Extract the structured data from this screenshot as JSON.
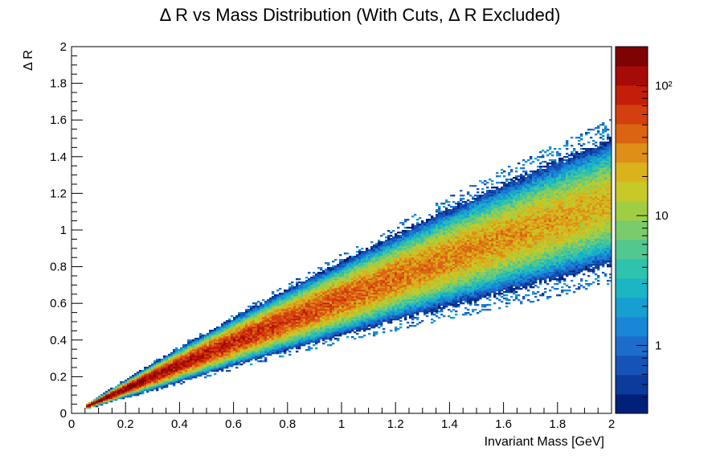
{
  "chart_data": {
    "type": "heatmap",
    "title": "Δ R vs Mass Distribution (With Cuts, Δ R Excluded)",
    "xlabel": "Invariant Mass [GeV]",
    "ylabel": "Δ R",
    "xlim": [
      0,
      2
    ],
    "ylim": [
      0,
      2
    ],
    "x_ticks": [
      "0",
      "0.2",
      "0.4",
      "0.6",
      "0.8",
      "1",
      "1.2",
      "1.4",
      "1.6",
      "1.8",
      "2"
    ],
    "y_ticks": [
      "0",
      "0.2",
      "0.4",
      "0.6",
      "0.8",
      "1",
      "1.2",
      "1.4",
      "1.6",
      "1.8",
      "2"
    ],
    "z_scale": "log",
    "zlim": [
      0.3,
      200
    ],
    "z_ticks": [
      "1",
      "10",
      "10²"
    ],
    "z_tick_values": [
      1,
      10,
      100
    ],
    "grid": false,
    "colormap": "kBird / rainbow",
    "palette_colors": [
      "#00207a",
      "#0b3b9c",
      "#1653b8",
      "#1c6ccc",
      "#1a86d6",
      "#169fd1",
      "#1bb5c4",
      "#2fc2ad",
      "#52c78f",
      "#7acb6c",
      "#a1cd44",
      "#c6c928",
      "#d9b21c",
      "#de8f17",
      "#db6413",
      "#d43f0f",
      "#c41e0b",
      "#a50c07",
      "#7f0303"
    ],
    "bands": [
      {
        "x": 0.05,
        "center": 0.034,
        "spread": 0.004,
        "peak": 200
      },
      {
        "x": 0.2,
        "center": 0.135,
        "spread": 0.014,
        "peak": 160
      },
      {
        "x": 0.4,
        "center": 0.265,
        "spread": 0.028,
        "peak": 110
      },
      {
        "x": 0.6,
        "center": 0.39,
        "spread": 0.04,
        "peak": 85
      },
      {
        "x": 0.8,
        "center": 0.51,
        "spread": 0.052,
        "peak": 65
      },
      {
        "x": 1.0,
        "center": 0.625,
        "spread": 0.064,
        "peak": 52
      },
      {
        "x": 1.2,
        "center": 0.74,
        "spread": 0.076,
        "peak": 42
      },
      {
        "x": 1.4,
        "center": 0.85,
        "spread": 0.088,
        "peak": 35
      },
      {
        "x": 1.6,
        "center": 0.955,
        "spread": 0.1,
        "peak": 30
      },
      {
        "x": 1.8,
        "center": 1.055,
        "spread": 0.11,
        "peak": 26
      },
      {
        "x": 2.0,
        "center": 1.155,
        "spread": 0.12,
        "peak": 22
      }
    ]
  }
}
